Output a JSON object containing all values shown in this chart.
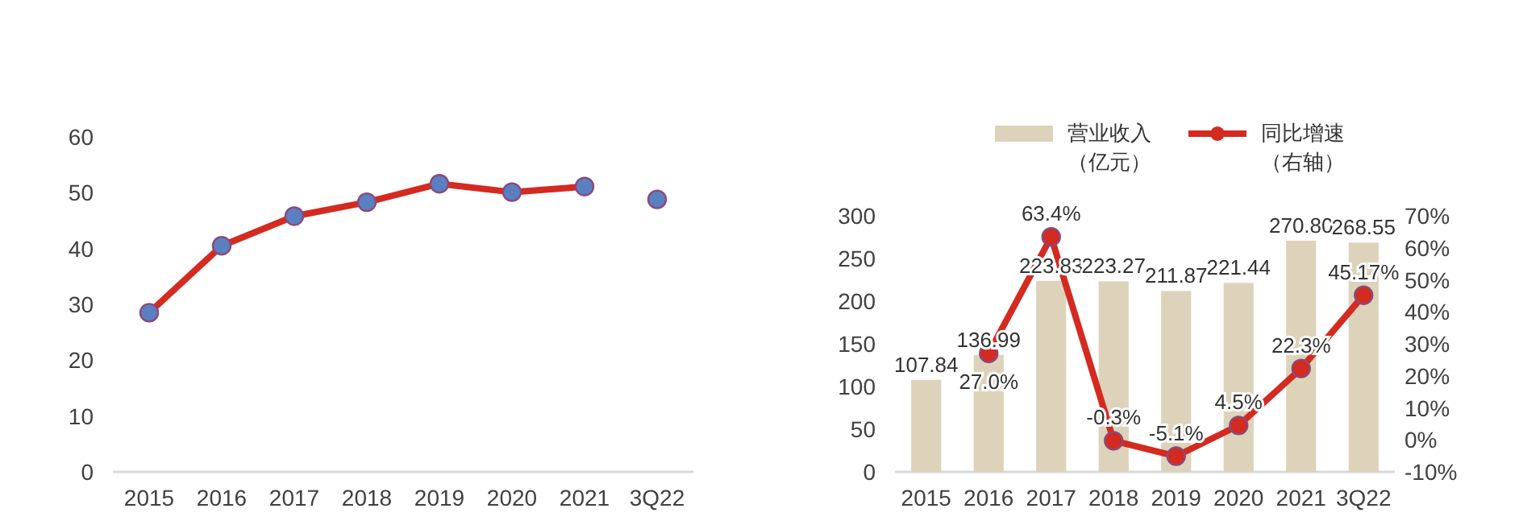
{
  "chart_data": [
    {
      "type": "line",
      "categories": [
        "2015",
        "2016",
        "2017",
        "2018",
        "2019",
        "2020",
        "2021",
        "3Q22"
      ],
      "ylim": [
        0,
        60
      ],
      "yticks": [
        0,
        10,
        20,
        30,
        40,
        50,
        60
      ],
      "marker": "circle",
      "legend": false,
      "grid": false,
      "series": [
        {
          "color": "#d42a20",
          "marker": "none",
          "values": [
            28.5,
            40.5,
            45.8,
            48.3,
            51.6,
            50.1,
            51.1,
            null
          ]
        },
        {
          "type": "scatter",
          "color": "#5b80c2",
          "values": [
            28.5,
            40.5,
            45.8,
            48.3,
            51.6,
            50.1,
            51.1,
            48.8
          ]
        }
      ]
    },
    {
      "type": "bar",
      "categories": [
        "2015",
        "2016",
        "2017",
        "2018",
        "2019",
        "2020",
        "2021",
        "3Q22"
      ],
      "ylim": [
        0,
        300
      ],
      "yticks": [
        0,
        50,
        100,
        150,
        200,
        250,
        300
      ],
      "y2lim": [
        -10,
        70
      ],
      "y2ticks": [
        {
          "value": -10,
          "label": "-10%"
        },
        {
          "value": 0,
          "label": "0%"
        },
        {
          "value": 10,
          "label": "10%"
        },
        {
          "value": 20,
          "label": "20%"
        },
        {
          "value": 30,
          "label": "30%"
        },
        {
          "value": 40,
          "label": "40%"
        },
        {
          "value": 50,
          "label": "50%"
        },
        {
          "value": 60,
          "label": "60%"
        },
        {
          "value": 70,
          "label": "70%"
        }
      ],
      "legend": "top",
      "grid": false,
      "series": [
        {
          "name": "营业收入（亿元）",
          "color": "#ddd3bb",
          "values": [
            107.84,
            136.99,
            223.83,
            223.27,
            211.87,
            221.44,
            270.8,
            268.55
          ],
          "value_labels": [
            "107.84",
            "136.99",
            "223.83",
            "223.27",
            "211.87",
            "221.44",
            "270.80",
            "268.55"
          ]
        },
        {
          "type": "line",
          "name": "同比增速（右轴）",
          "axis": "y2",
          "color": "#d42a20",
          "marker": "circle",
          "values": [
            null,
            27.0,
            63.4,
            -0.3,
            -5.1,
            4.5,
            22.3,
            45.17
          ],
          "value_labels": [
            null,
            "27.0%",
            "63.4%",
            "-0.3%",
            "-5.1%",
            "4.5%",
            "22.3%",
            "45.17%"
          ]
        }
      ]
    }
  ]
}
